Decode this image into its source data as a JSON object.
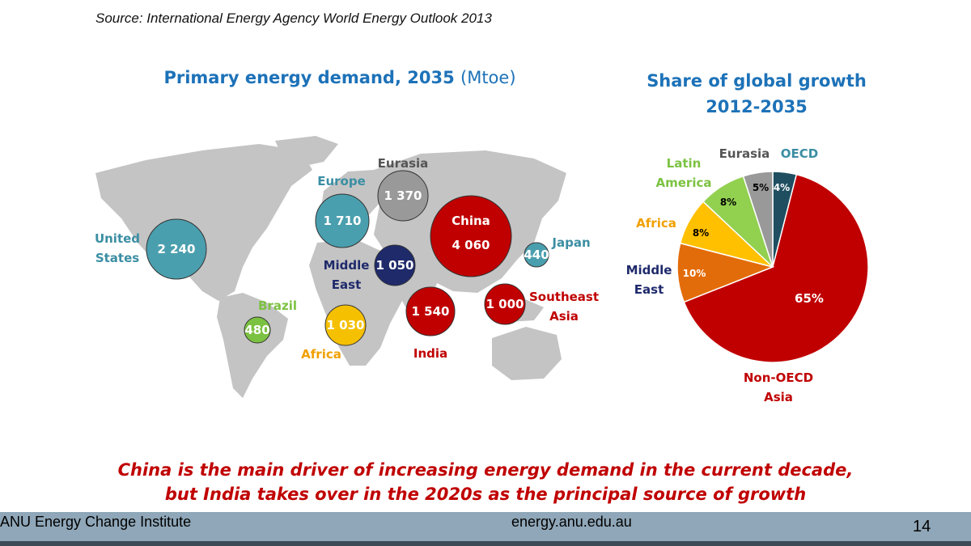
{
  "source": "Source:  International Energy Agency World Energy Outlook 2013",
  "map": {
    "title": "Primary energy demand, 2035",
    "unit": "(Mtoe)",
    "regions": [
      {
        "name_lines": [
          "United",
          "States"
        ],
        "value": "2 240",
        "color": "#4a9fae"
      },
      {
        "name_lines": [
          "Europe"
        ],
        "value": "1 710",
        "color": "#4a9fae"
      },
      {
        "name_lines": [
          "Eurasia"
        ],
        "value": "1 370",
        "color": "#999999"
      },
      {
        "name_lines": [
          "China"
        ],
        "value": "4 060",
        "color": "#c00000"
      },
      {
        "name_lines": [
          "Japan"
        ],
        "value": "440",
        "color": "#4a9fae"
      },
      {
        "name_lines": [
          "Middle",
          "East"
        ],
        "value": "1 050",
        "color": "#1f2a6b"
      },
      {
        "name_lines": [
          "Brazil"
        ],
        "value": "480",
        "color": "#7cc242"
      },
      {
        "name_lines": [
          "Africa"
        ],
        "value": "1 030",
        "color": "#f5c000"
      },
      {
        "name_lines": [
          "India"
        ],
        "value": "1 540",
        "color": "#c00000"
      },
      {
        "name_lines": [
          "Southeast",
          "Asia"
        ],
        "value": "1 000",
        "color": "#c00000"
      }
    ]
  },
  "pie": {
    "title_line1": "Share of global growth",
    "title_line2": "2012-2035",
    "slices": [
      {
        "label_lines": [
          "OECD"
        ],
        "pct": 4,
        "pct_label": "4%",
        "color": "#1f4e60",
        "label_color": "#3b8ea3"
      },
      {
        "label_lines": [
          "Non-OECD",
          "Asia"
        ],
        "pct": 65,
        "pct_label": "65%",
        "color": "#c00000",
        "label_color": "#c00000"
      },
      {
        "label_lines": [
          "Middle",
          "East"
        ],
        "pct": 10,
        "pct_label": "10%",
        "color": "#e36c0a",
        "label_color": "#1f2a6b"
      },
      {
        "label_lines": [
          "Africa"
        ],
        "pct": 8,
        "pct_label": "8%",
        "color": "#ffc000",
        "label_color": "#f0a000"
      },
      {
        "label_lines": [
          "Latin",
          "America"
        ],
        "pct": 8,
        "pct_label": "8%",
        "color": "#92d050",
        "label_color": "#7cc242"
      },
      {
        "label_lines": [
          "Eurasia"
        ],
        "pct": 5,
        "pct_label": "5%",
        "color": "#999999",
        "label_color": "#555555"
      }
    ]
  },
  "headline": {
    "line1": "China is the main driver of increasing energy demand in the current decade,",
    "line2": "but India takes over in the 2020s as the principal source of growth"
  },
  "footer": {
    "left": "ANU Energy Change Institute",
    "center": "energy.anu.edu.au",
    "page": "14"
  }
}
